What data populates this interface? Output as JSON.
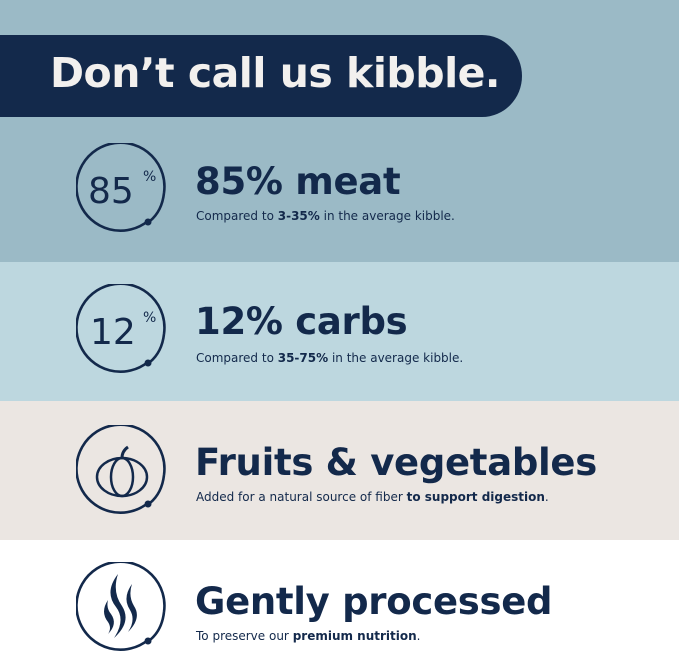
{
  "banner": {
    "headline": "Don’t call us kibble."
  },
  "colors": {
    "navy": "#13294b",
    "section1": "#9bbac6",
    "section2": "#bdd7df",
    "section3": "#ebe6e2",
    "section4": "#ffffff"
  },
  "features": [
    {
      "icon": "85-percent-icon",
      "icon_number": "85",
      "icon_percent": "%",
      "title": "85% meat",
      "sub_pre": "Compared to ",
      "sub_bold": "3-35%",
      "sub_post": " in the average kibble."
    },
    {
      "icon": "12-percent-icon",
      "icon_number": "12",
      "icon_percent": "%",
      "title": "12% carbs",
      "sub_pre": "Compared to ",
      "sub_bold": "35-75%",
      "sub_post": " in the average kibble."
    },
    {
      "icon": "pumpkin-icon",
      "title": "Fruits & vegetables",
      "sub_pre": "Added for a natural source of fiber ",
      "sub_bold": "to support digestion",
      "sub_post": "."
    },
    {
      "icon": "steam-icon",
      "title": "Gently processed",
      "sub_pre": "To preserve our ",
      "sub_bold": "premium nutrition",
      "sub_post": "."
    }
  ]
}
